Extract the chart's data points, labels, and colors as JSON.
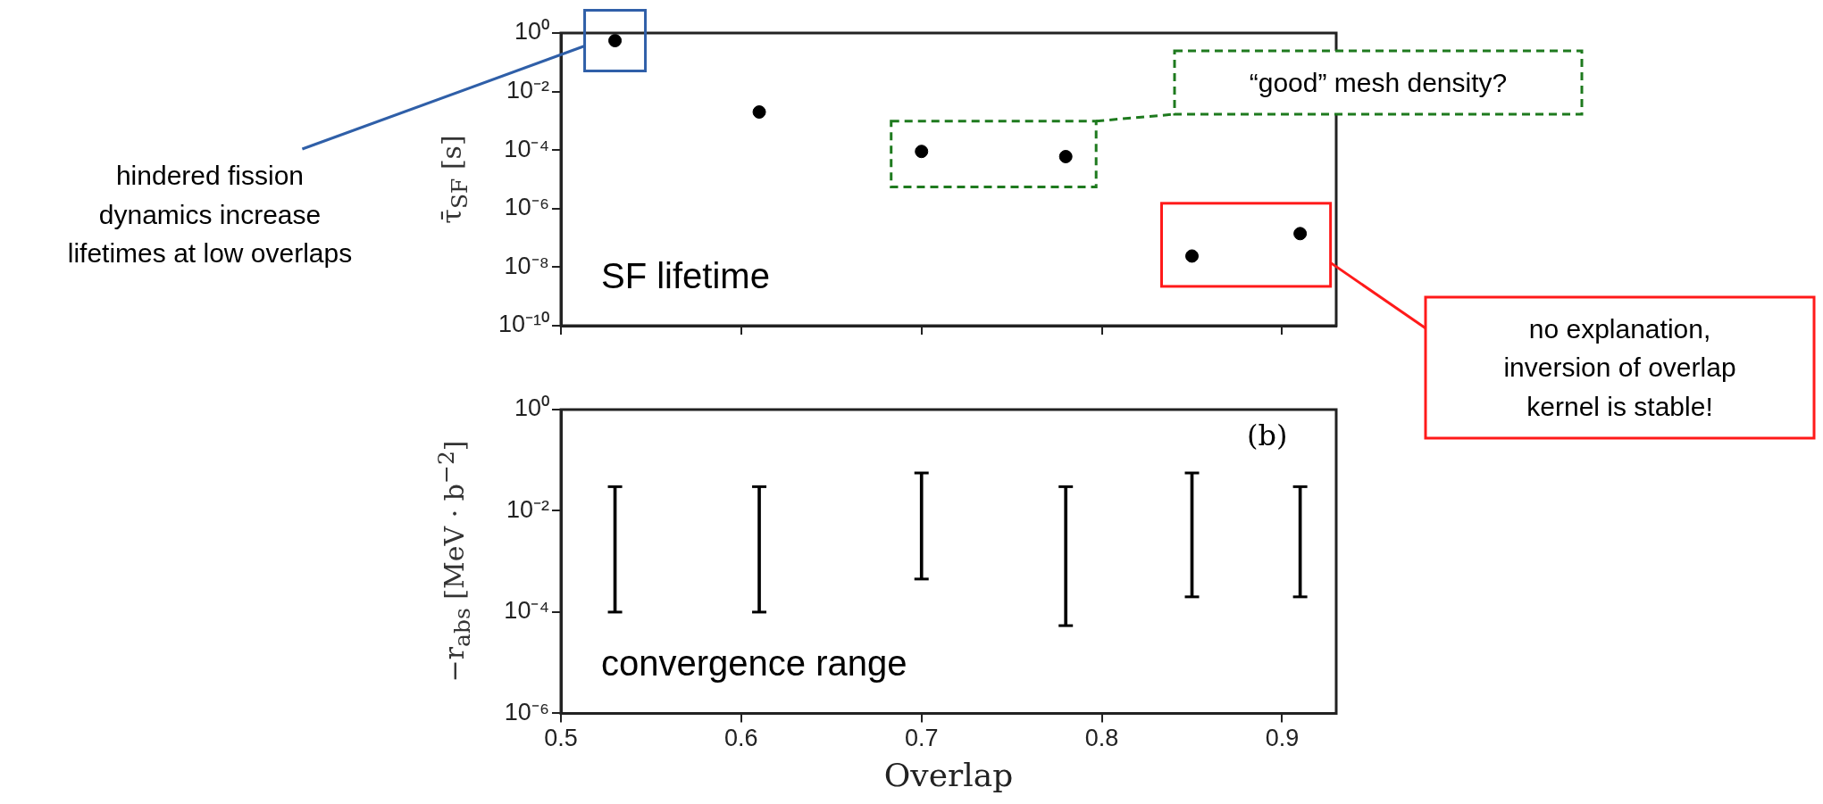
{
  "chart_data": [
    {
      "type": "scatter",
      "ylabel": "τ̄$_{SF}$ [s]",
      "x": [
        0.53,
        0.61,
        0.7,
        0.78,
        0.85,
        0.91
      ],
      "values": [
        0.55,
        0.002,
        9e-05,
        6e-05,
        2.4e-08,
        1.4e-07
      ],
      "color": "#000000",
      "marker": "circle",
      "log": "y",
      "grid": false,
      "legend": false,
      "tick_labels": "y",
      "xlim": [
        0.5,
        0.93
      ],
      "xticks": [
        {
          "value": 0.5,
          "label": null
        },
        {
          "value": 0.6,
          "label": null
        },
        {
          "value": 0.7,
          "label": null
        },
        {
          "value": 0.8,
          "label": null
        },
        {
          "value": 0.9,
          "label": null
        }
      ],
      "ylim": [
        1e-10,
        1
      ],
      "yticks": [
        {
          "value": 1e-10,
          "label": "10⁻¹⁰"
        },
        {
          "value": 1e-08,
          "label": "10⁻⁸"
        },
        {
          "value": 1e-06,
          "label": "10⁻⁶"
        },
        {
          "value": 0.0001,
          "label": "10⁻⁴"
        },
        {
          "value": 0.01,
          "label": "10⁻²"
        },
        {
          "value": 1,
          "label": "10⁰"
        }
      ],
      "annotations": [
        "SF lifetime",
        "hindered fission\ndynamics increase\nlifetimes at low overlaps",
        "“good” mesh density?",
        "no explanation,\ninversion of overlap\nkernel is stable!"
      ]
    },
    {
      "type": "bar",
      "xlabel": "Overlap",
      "ylabel": "−r$_{abs}$ [MeV · b$^{−2}$]",
      "x": [
        0.53,
        0.61,
        0.7,
        0.78,
        0.85,
        0.91
      ],
      "base": [
        0.0001,
        0.0001,
        0.00045,
        5.4e-05,
        0.0002,
        0.0002
      ],
      "values": [
        0.0299,
        0.0299,
        0.05555,
        0.029946,
        0.0558,
        0.0298
      ],
      "color": "#000000",
      "log": "y",
      "grid": false,
      "legend": false,
      "xlim": [
        0.5,
        0.93
      ],
      "xticks": [
        0.5,
        0.6,
        0.7,
        0.8,
        0.9
      ],
      "ylim": [
        1e-06,
        1
      ],
      "yticks": [
        {
          "value": 1e-06,
          "label": "10⁻⁶"
        },
        {
          "value": 0.0001,
          "label": "10⁻⁴"
        },
        {
          "value": 0.01,
          "label": "10⁻²"
        },
        {
          "value": 1,
          "label": "10⁰"
        }
      ],
      "annotations": [
        "convergence range",
        "(b)"
      ]
    }
  ]
}
